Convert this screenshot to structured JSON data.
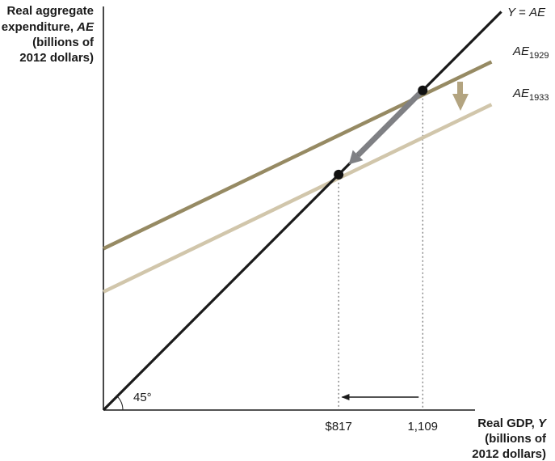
{
  "chart_data": {
    "type": "line",
    "title": "",
    "ylabel": {
      "line1": "Real aggregate",
      "line2_pre": "expenditure, ",
      "line2_var": "AE",
      "line3": "(billions of",
      "line4": "2012 dollars)"
    },
    "xlabel": {
      "line1_pre": "Real GDP, ",
      "line1_var": "Y",
      "line2": "(billions of",
      "line3": "2012 dollars)"
    },
    "xlim": [
      0,
      1390
    ],
    "ylim": [
      0,
      1390
    ],
    "x_ticks": [
      {
        "value": 817,
        "label": "$817"
      },
      {
        "value": 1109,
        "label": "1,109"
      }
    ],
    "series": [
      {
        "name": "Y = AE",
        "label_parts": {
          "pre": "Y",
          "mid": " = ",
          "post": "AE"
        },
        "color": "#1a1a1a",
        "x": [
          0,
          1382
        ],
        "y": [
          0,
          1382
        ]
      },
      {
        "name": "AE1929",
        "label_parts": {
          "base": "AE",
          "sub": "1929"
        },
        "color": "#968a63",
        "x": [
          0,
          1348
        ],
        "y": [
          560,
          1208
        ]
      },
      {
        "name": "AE1933",
        "label_parts": {
          "base": "AE",
          "sub": "1933"
        },
        "color": "#d1c6ab",
        "x": [
          0,
          1348
        ],
        "y": [
          410,
          1060
        ]
      }
    ],
    "equilibria": [
      {
        "x": 1109,
        "y": 1109
      },
      {
        "x": 817,
        "y": 817
      }
    ],
    "annotations": {
      "angle_label": "45°",
      "shift_arrow": "down",
      "movement_arrow": "along 45-degree line from 1,109 to $817",
      "axis_arrow": "from 1,109 to $817"
    },
    "grid": false,
    "colors": {
      "axis": "#1a1a1a",
      "guide": "#555555",
      "shift_arrow": "#b3a480",
      "movement_arrow": "#7f8084"
    }
  }
}
